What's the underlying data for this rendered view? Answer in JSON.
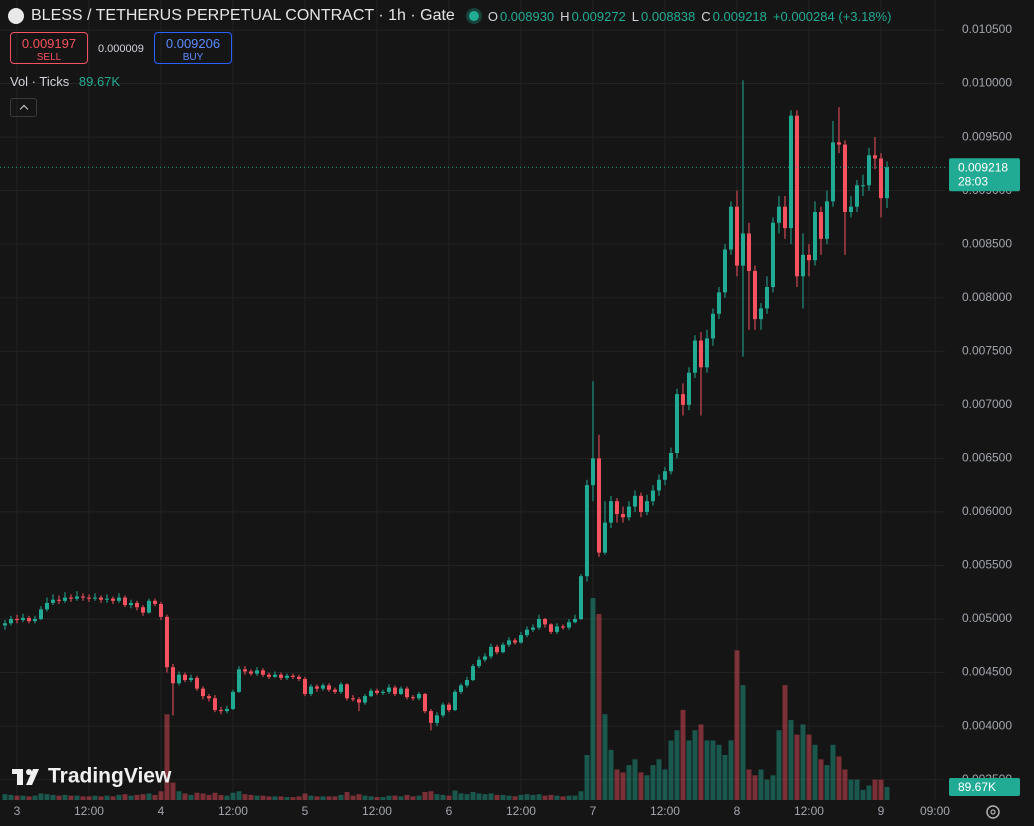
{
  "toolbar": {
    "title": "BLESS / TETHERUS PERPETUAL CONTRACT · 1h · Gate",
    "ohlc_legend": [
      {
        "key": "O",
        "value": "0.008930"
      },
      {
        "key": "H",
        "value": "0.009272"
      },
      {
        "key": "L",
        "value": "0.008838"
      },
      {
        "key": "C",
        "value": "0.009218"
      }
    ],
    "change": "+0.000284 (+3.18%)",
    "sell": {
      "price": "0.009197",
      "label": "SELL"
    },
    "spread": "0.000009",
    "buy": {
      "price": "0.009206",
      "label": "BUY"
    },
    "volume_legend": {
      "label": "Vol · Ticks",
      "value": "89.67K"
    },
    "watermark": "TradingView"
  },
  "chart_data": {
    "type": "candlestick",
    "up_color": "#22ab94",
    "down_color": "#f7525f",
    "xlim": [
      -2.83,
      154.67
    ],
    "ylim": [
      0.00331,
      0.01078
    ],
    "volume_ylim": [
      0,
      1500000
    ],
    "grid": true,
    "xticks": [
      {
        "value": 0,
        "label": "3"
      },
      {
        "value": 12,
        "label": "12:00"
      },
      {
        "value": 24,
        "label": "4"
      },
      {
        "value": 36,
        "label": "12:00"
      },
      {
        "value": 48,
        "label": "5"
      },
      {
        "value": 60,
        "label": "12:00"
      },
      {
        "value": 72,
        "label": "6"
      },
      {
        "value": 84,
        "label": "12:00"
      },
      {
        "value": 96,
        "label": "7"
      },
      {
        "value": 108,
        "label": "12:00"
      },
      {
        "value": 120,
        "label": "8"
      },
      {
        "value": 132,
        "label": "12:00"
      },
      {
        "value": 144,
        "label": "9"
      },
      {
        "value": 153,
        "label": "09:00"
      }
    ],
    "yticks": [
      {
        "value": 0.0035,
        "label": "0.003500"
      },
      {
        "value": 0.004,
        "label": "0.004000"
      },
      {
        "value": 0.0045,
        "label": "0.004500"
      },
      {
        "value": 0.005,
        "label": "0.005000"
      },
      {
        "value": 0.0055,
        "label": "0.005500"
      },
      {
        "value": 0.006,
        "label": "0.006000"
      },
      {
        "value": 0.0065,
        "label": "0.006500"
      },
      {
        "value": 0.007,
        "label": "0.007000"
      },
      {
        "value": 0.0075,
        "label": "0.007500"
      },
      {
        "value": 0.008,
        "label": "0.008000"
      },
      {
        "value": 0.0085,
        "label": "0.008500"
      },
      {
        "value": 0.009,
        "label": "0.009000"
      },
      {
        "value": 0.0095,
        "label": "0.009500"
      },
      {
        "value": 0.01,
        "label": "0.010000"
      },
      {
        "value": 0.0105,
        "label": "0.010500"
      }
    ],
    "last_price_label": "0.009218",
    "countdown": "28:03",
    "last_volume_label": "89.67K",
    "x": [
      -2,
      -1,
      0,
      1,
      2,
      3,
      4,
      5,
      6,
      7,
      8,
      9,
      10,
      11,
      12,
      13,
      14,
      15,
      16,
      17,
      18,
      19,
      20,
      21,
      22,
      23,
      24,
      25,
      26,
      27,
      28,
      29,
      30,
      31,
      32,
      33,
      34,
      35,
      36,
      37,
      38,
      39,
      40,
      41,
      42,
      43,
      44,
      45,
      46,
      47,
      48,
      49,
      50,
      51,
      52,
      53,
      54,
      55,
      56,
      57,
      58,
      59,
      60,
      61,
      62,
      63,
      64,
      65,
      66,
      67,
      68,
      69,
      70,
      71,
      72,
      73,
      74,
      75,
      76,
      77,
      78,
      79,
      80,
      81,
      82,
      83,
      84,
      85,
      86,
      87,
      88,
      89,
      90,
      91,
      92,
      93,
      94,
      95,
      96,
      97,
      98,
      99,
      100,
      101,
      102,
      103,
      104,
      105,
      106,
      107,
      108,
      109,
      110,
      111,
      112,
      113,
      114,
      115,
      116,
      117,
      118,
      119,
      120,
      121,
      122,
      123,
      124,
      125,
      126,
      127,
      128,
      129,
      130,
      131,
      132,
      133,
      134,
      135,
      136,
      137,
      138,
      139,
      140,
      141,
      142,
      143,
      144,
      145
    ],
    "open": [
      0.00494,
      0.00496,
      0.005,
      0.00499,
      0.00501,
      0.00498,
      0.005,
      0.00509,
      0.00515,
      0.00518,
      0.00517,
      0.0052,
      0.00519,
      0.00521,
      0.0052,
      0.00519,
      0.0052,
      0.00518,
      0.00519,
      0.00517,
      0.0052,
      0.00513,
      0.00515,
      0.00511,
      0.00506,
      0.00517,
      0.00514,
      0.00502,
      0.00455,
      0.0044,
      0.00448,
      0.00443,
      0.00445,
      0.00435,
      0.00428,
      0.00426,
      0.00415,
      0.00414,
      0.00416,
      0.00432,
      0.00453,
      0.00451,
      0.00449,
      0.00452,
      0.00448,
      0.00446,
      0.00448,
      0.00445,
      0.00447,
      0.00446,
      0.00444,
      0.0043,
      0.00437,
      0.00435,
      0.00438,
      0.00434,
      0.00432,
      0.00439,
      0.00426,
      0.00425,
      0.00422,
      0.00428,
      0.00433,
      0.00431,
      0.00432,
      0.00436,
      0.0043,
      0.00435,
      0.00427,
      0.00426,
      0.0043,
      0.00414,
      0.00403,
      0.0041,
      0.0042,
      0.00415,
      0.00432,
      0.00438,
      0.00443,
      0.00456,
      0.00462,
      0.00465,
      0.00474,
      0.00469,
      0.00476,
      0.0048,
      0.00478,
      0.00485,
      0.0049,
      0.00492,
      0.005,
      0.00495,
      0.00488,
      0.00493,
      0.00492,
      0.00497,
      0.005,
      0.0054,
      0.00625,
      0.0065,
      0.00562,
      0.0059,
      0.0061,
      0.00598,
      0.00595,
      0.00605,
      0.00615,
      0.006,
      0.0061,
      0.0062,
      0.0063,
      0.00638,
      0.00655,
      0.0071,
      0.007,
      0.0073,
      0.0076,
      0.00735,
      0.00762,
      0.00785,
      0.00805,
      0.00845,
      0.00885,
      0.0083,
      0.0086,
      0.00825,
      0.0078,
      0.0079,
      0.0081,
      0.0087,
      0.00885,
      0.00865,
      0.0097,
      0.0082,
      0.0084,
      0.00835,
      0.0088,
      0.00855,
      0.0089,
      0.00945,
      0.00943,
      0.0088,
      0.00885,
      0.00905,
      0.00905,
      0.00933,
      0.0093,
      0.00893
    ],
    "high": [
      0.00499,
      0.00503,
      0.00504,
      0.00505,
      0.00503,
      0.00503,
      0.00512,
      0.0052,
      0.00523,
      0.00522,
      0.00525,
      0.00523,
      0.00526,
      0.00524,
      0.00523,
      0.00524,
      0.00522,
      0.00523,
      0.00521,
      0.00524,
      0.00522,
      0.00518,
      0.00517,
      0.00513,
      0.00519,
      0.00519,
      0.00516,
      0.00504,
      0.00458,
      0.00451,
      0.0045,
      0.00448,
      0.00447,
      0.00437,
      0.0043,
      0.00429,
      0.00418,
      0.00419,
      0.00434,
      0.00456,
      0.00456,
      0.00453,
      0.00455,
      0.00454,
      0.0045,
      0.00451,
      0.0045,
      0.00449,
      0.00449,
      0.00448,
      0.00446,
      0.00439,
      0.00439,
      0.0044,
      0.0044,
      0.00436,
      0.00441,
      0.0044,
      0.00429,
      0.00427,
      0.0043,
      0.00435,
      0.00435,
      0.00434,
      0.00439,
      0.00438,
      0.00437,
      0.00437,
      0.00429,
      0.00432,
      0.00431,
      0.00416,
      0.00413,
      0.00422,
      0.00422,
      0.00434,
      0.0044,
      0.00446,
      0.00458,
      0.00465,
      0.00468,
      0.00477,
      0.00476,
      0.00478,
      0.00483,
      0.00482,
      0.00488,
      0.00493,
      0.00495,
      0.00504,
      0.00501,
      0.00496,
      0.00496,
      0.00495,
      0.005,
      0.00504,
      0.00542,
      0.0063,
      0.00722,
      0.00672,
      0.0061,
      0.00615,
      0.00613,
      0.00605,
      0.0061,
      0.0062,
      0.00618,
      0.00616,
      0.00625,
      0.00635,
      0.00642,
      0.0066,
      0.00715,
      0.0072,
      0.00735,
      0.00765,
      0.00768,
      0.0077,
      0.0079,
      0.0081,
      0.0085,
      0.0089,
      0.009,
      0.01003,
      0.0087,
      0.0083,
      0.00795,
      0.0082,
      0.00875,
      0.00895,
      0.00895,
      0.00975,
      0.00975,
      0.0086,
      0.0085,
      0.0089,
      0.00885,
      0.009,
      0.00965,
      0.00978,
      0.00947,
      0.00895,
      0.0091,
      0.00915,
      0.0094,
      0.0095,
      0.00935,
      0.009272
    ],
    "low": [
      0.0049,
      0.00494,
      0.00496,
      0.00497,
      0.00496,
      0.00496,
      0.00499,
      0.00507,
      0.00513,
      0.00514,
      0.00515,
      0.00516,
      0.00517,
      0.00517,
      0.00516,
      0.00517,
      0.00515,
      0.00515,
      0.00514,
      0.00515,
      0.00511,
      0.0051,
      0.00508,
      0.00503,
      0.00505,
      0.00512,
      0.00499,
      0.0045,
      0.0041,
      0.00438,
      0.00441,
      0.00441,
      0.00433,
      0.00425,
      0.00423,
      0.00413,
      0.00411,
      0.00412,
      0.00415,
      0.00431,
      0.00448,
      0.00447,
      0.00447,
      0.00446,
      0.00444,
      0.00445,
      0.00443,
      0.00443,
      0.00444,
      0.00442,
      0.00428,
      0.00428,
      0.00432,
      0.00433,
      0.00432,
      0.0043,
      0.0043,
      0.00424,
      0.00423,
      0.00414,
      0.0042,
      0.00427,
      0.00429,
      0.00429,
      0.0043,
      0.00428,
      0.00429,
      0.00425,
      0.00424,
      0.00424,
      0.00412,
      0.00396,
      0.004,
      0.00408,
      0.00413,
      0.00414,
      0.0043,
      0.00436,
      0.00442,
      0.00454,
      0.0046,
      0.00463,
      0.00467,
      0.00468,
      0.00474,
      0.00476,
      0.00477,
      0.00483,
      0.00488,
      0.0049,
      0.00492,
      0.00486,
      0.00486,
      0.0049,
      0.0049,
      0.00496,
      0.00499,
      0.00535,
      0.0061,
      0.00558,
      0.0056,
      0.00585,
      0.0059,
      0.0059,
      0.00592,
      0.006,
      0.00595,
      0.00597,
      0.00606,
      0.00615,
      0.00625,
      0.00635,
      0.0065,
      0.0069,
      0.00695,
      0.00725,
      0.0069,
      0.0073,
      0.00755,
      0.0078,
      0.008,
      0.0084,
      0.0082,
      0.00745,
      0.0077,
      0.0077,
      0.0077,
      0.00785,
      0.00805,
      0.0086,
      0.00855,
      0.0085,
      0.0081,
      0.0079,
      0.0082,
      0.0083,
      0.0084,
      0.0085,
      0.00885,
      0.00935,
      0.0084,
      0.00875,
      0.0088,
      0.00895,
      0.009,
      0.0092,
      0.00875,
      0.008838
    ],
    "close": [
      0.00496,
      0.005,
      0.00499,
      0.00501,
      0.00498,
      0.005,
      0.00509,
      0.00515,
      0.00518,
      0.00517,
      0.0052,
      0.00519,
      0.00521,
      0.0052,
      0.00519,
      0.0052,
      0.00518,
      0.00519,
      0.00517,
      0.0052,
      0.00513,
      0.00515,
      0.00511,
      0.00506,
      0.00517,
      0.00514,
      0.00502,
      0.00455,
      0.0044,
      0.00448,
      0.00443,
      0.00445,
      0.00435,
      0.00428,
      0.00426,
      0.00415,
      0.00414,
      0.00416,
      0.00432,
      0.00453,
      0.00451,
      0.00449,
      0.00452,
      0.00448,
      0.00446,
      0.00448,
      0.00445,
      0.00447,
      0.00446,
      0.00444,
      0.0043,
      0.00437,
      0.00435,
      0.00438,
      0.00434,
      0.00432,
      0.00439,
      0.00426,
      0.00425,
      0.00422,
      0.00428,
      0.00433,
      0.00431,
      0.00432,
      0.00436,
      0.0043,
      0.00435,
      0.00427,
      0.00426,
      0.0043,
      0.00414,
      0.00403,
      0.0041,
      0.0042,
      0.00415,
      0.00432,
      0.00438,
      0.00443,
      0.00456,
      0.00462,
      0.00465,
      0.00474,
      0.00469,
      0.00476,
      0.0048,
      0.00478,
      0.00485,
      0.0049,
      0.00492,
      0.005,
      0.00495,
      0.00488,
      0.00493,
      0.00492,
      0.00497,
      0.005,
      0.0054,
      0.00625,
      0.0065,
      0.00562,
      0.0059,
      0.0061,
      0.00598,
      0.00595,
      0.00605,
      0.00615,
      0.006,
      0.0061,
      0.0062,
      0.0063,
      0.00638,
      0.00655,
      0.0071,
      0.007,
      0.0073,
      0.0076,
      0.00735,
      0.00762,
      0.00785,
      0.00805,
      0.00845,
      0.00885,
      0.0083,
      0.0086,
      0.00825,
      0.0078,
      0.0079,
      0.0081,
      0.0087,
      0.00885,
      0.00865,
      0.0097,
      0.0082,
      0.0084,
      0.00835,
      0.0088,
      0.00855,
      0.0089,
      0.00945,
      0.00943,
      0.0088,
      0.00885,
      0.00905,
      0.00905,
      0.00933,
      0.0093,
      0.00893,
      0.009218
    ],
    "volume": [
      40000,
      35000,
      30000,
      30000,
      25000,
      30000,
      45000,
      40000,
      35000,
      30000,
      35000,
      30000,
      30000,
      25000,
      25000,
      30000,
      25000,
      30000,
      25000,
      35000,
      40000,
      30000,
      35000,
      40000,
      45000,
      35000,
      60000,
      590000,
      120000,
      60000,
      45000,
      35000,
      50000,
      45000,
      35000,
      50000,
      35000,
      30000,
      50000,
      60000,
      40000,
      35000,
      30000,
      30000,
      25000,
      25000,
      25000,
      20000,
      20000,
      25000,
      45000,
      30000,
      25000,
      25000,
      25000,
      25000,
      35000,
      55000,
      30000,
      40000,
      30000,
      25000,
      20000,
      20000,
      30000,
      30000,
      25000,
      35000,
      25000,
      30000,
      55000,
      60000,
      40000,
      35000,
      30000,
      65000,
      45000,
      40000,
      55000,
      45000,
      40000,
      45000,
      35000,
      35000,
      30000,
      25000,
      35000,
      40000,
      35000,
      40000,
      30000,
      35000,
      30000,
      25000,
      30000,
      30000,
      60000,
      310000,
      1390000,
      1280000,
      590000,
      345000,
      210000,
      190000,
      240000,
      280000,
      190000,
      170000,
      240000,
      280000,
      210000,
      410000,
      480000,
      620000,
      410000,
      480000,
      520000,
      410000,
      410000,
      380000,
      310000,
      410000,
      1030000,
      790000,
      210000,
      170000,
      210000,
      140000,
      170000,
      480000,
      790000,
      550000,
      450000,
      520000,
      450000,
      380000,
      280000,
      240000,
      380000,
      300000,
      210000,
      140000,
      140000,
      70000,
      100000,
      140000,
      140000,
      89670
    ]
  }
}
